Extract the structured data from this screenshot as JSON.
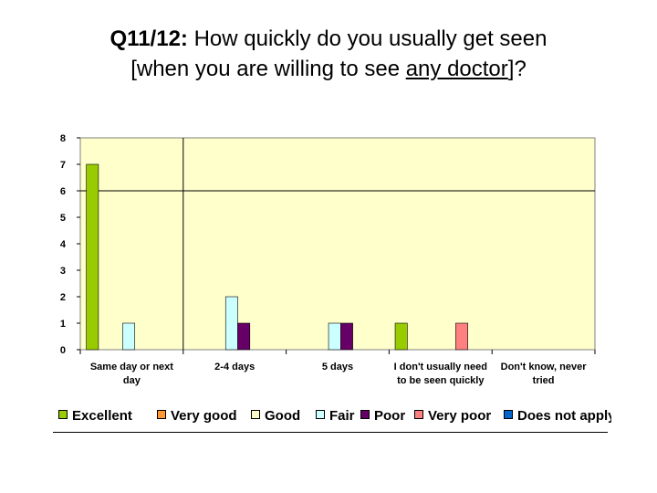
{
  "title": {
    "question": "Q11/12:",
    "line1": "How quickly do you usually get seen",
    "line2_pre": "[when you are willing to see ",
    "line2_ul": "any doctor",
    "line2_post": "]?"
  },
  "chart_data": {
    "type": "bar",
    "ylim": [
      0,
      8
    ],
    "yticks": [
      "0",
      "1",
      "2",
      "3",
      "4",
      "5",
      "6",
      "7",
      "8"
    ],
    "categories": [
      [
        "Same day or next",
        "day"
      ],
      [
        "2-4 days"
      ],
      [
        "5 days"
      ],
      [
        "I don't usually need",
        "to be seen quickly"
      ],
      [
        "Don't know, never",
        "tried"
      ]
    ],
    "series": [
      {
        "name": "Excellent",
        "color": "#99cc00",
        "values": [
          7,
          0,
          0,
          1,
          0
        ]
      },
      {
        "name": "Very good",
        "color": "#ff9933",
        "values": [
          0,
          0,
          0,
          0,
          0
        ]
      },
      {
        "name": "Good",
        "color": "#ffffcc",
        "values": [
          0,
          0,
          0,
          0,
          0
        ]
      },
      {
        "name": "Fair",
        "color": "#ccffff",
        "values": [
          1,
          2,
          1,
          0,
          0
        ]
      },
      {
        "name": "Poor",
        "color": "#660066",
        "values": [
          0,
          1,
          1,
          0,
          0
        ]
      },
      {
        "name": "Very poor",
        "color": "#ff8080",
        "values": [
          0,
          0,
          0,
          1,
          0
        ]
      },
      {
        "name": "Does not apply",
        "color": "#0066cc",
        "values": [
          0,
          0,
          0,
          0,
          0
        ]
      }
    ],
    "plot_background": "#ffffcc",
    "grid": true,
    "legend_position": "bottom"
  }
}
